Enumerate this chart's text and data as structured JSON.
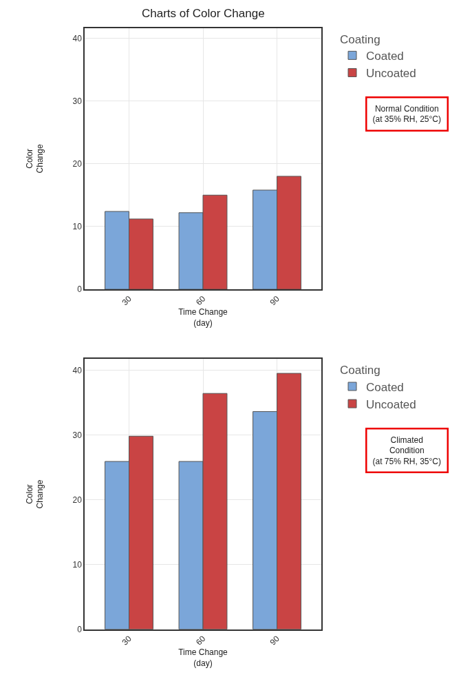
{
  "chart_data": [
    {
      "type": "bar",
      "title": "Charts of Color Change",
      "xlabel": "Time Change\n(day)",
      "ylabel": "Color\nChange",
      "legend_title": "Coating",
      "legend": "right",
      "grid": true,
      "categories": [
        "30",
        "60",
        "90"
      ],
      "series": [
        {
          "name": "Coated",
          "color": "#7ba6d9",
          "values": [
            12.4,
            12.2,
            15.8
          ]
        },
        {
          "name": "Uncoated",
          "color": "#c94444",
          "values": [
            11.2,
            15.0,
            18.0
          ]
        }
      ],
      "ylim": [
        0,
        41.6
      ],
      "yticks": [
        0,
        10,
        20,
        30,
        40
      ],
      "annotations": [
        "Normal Condition\n(at 35% RH, 25°C)"
      ]
    },
    {
      "type": "bar",
      "xlabel": "Time Change\n(day)",
      "ylabel": "Color\nChange",
      "legend_title": "Coating",
      "legend": "right",
      "grid": true,
      "categories": [
        "30",
        "60",
        "90"
      ],
      "series": [
        {
          "name": "Coated",
          "color": "#7ba6d9",
          "values": [
            25.9,
            25.9,
            33.6
          ]
        },
        {
          "name": "Uncoated",
          "color": "#c94444",
          "values": [
            29.8,
            36.4,
            39.5
          ]
        }
      ],
      "ylim": [
        0,
        41.7
      ],
      "yticks": [
        0,
        10,
        20,
        30,
        40
      ],
      "annotations": [
        "Climated\nCondition\n(at 75% RH, 35°C)"
      ]
    }
  ]
}
